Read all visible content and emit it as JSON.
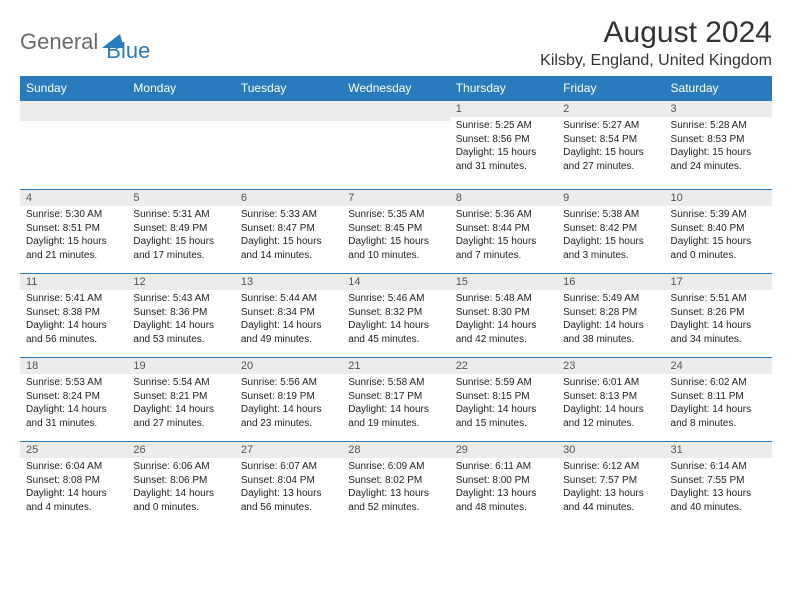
{
  "brand": {
    "word1": "General",
    "word2": "Blue",
    "logo_color": "#2a7bbd"
  },
  "title": "August 2024",
  "location": "Kilsby, England, United Kingdom",
  "colors": {
    "header_bg": "#2a7bbd",
    "header_text": "#ffffff",
    "num_row_bg": "#ececec",
    "rule": "#2a7bbd",
    "text": "#222222"
  },
  "day_headers": [
    "Sunday",
    "Monday",
    "Tuesday",
    "Wednesday",
    "Thursday",
    "Friday",
    "Saturday"
  ],
  "weeks": [
    [
      null,
      null,
      null,
      null,
      {
        "n": "1",
        "sr": "5:25 AM",
        "ss": "8:56 PM",
        "dl": "15 hours and 31 minutes."
      },
      {
        "n": "2",
        "sr": "5:27 AM",
        "ss": "8:54 PM",
        "dl": "15 hours and 27 minutes."
      },
      {
        "n": "3",
        "sr": "5:28 AM",
        "ss": "8:53 PM",
        "dl": "15 hours and 24 minutes."
      }
    ],
    [
      {
        "n": "4",
        "sr": "5:30 AM",
        "ss": "8:51 PM",
        "dl": "15 hours and 21 minutes."
      },
      {
        "n": "5",
        "sr": "5:31 AM",
        "ss": "8:49 PM",
        "dl": "15 hours and 17 minutes."
      },
      {
        "n": "6",
        "sr": "5:33 AM",
        "ss": "8:47 PM",
        "dl": "15 hours and 14 minutes."
      },
      {
        "n": "7",
        "sr": "5:35 AM",
        "ss": "8:45 PM",
        "dl": "15 hours and 10 minutes."
      },
      {
        "n": "8",
        "sr": "5:36 AM",
        "ss": "8:44 PM",
        "dl": "15 hours and 7 minutes."
      },
      {
        "n": "9",
        "sr": "5:38 AM",
        "ss": "8:42 PM",
        "dl": "15 hours and 3 minutes."
      },
      {
        "n": "10",
        "sr": "5:39 AM",
        "ss": "8:40 PM",
        "dl": "15 hours and 0 minutes."
      }
    ],
    [
      {
        "n": "11",
        "sr": "5:41 AM",
        "ss": "8:38 PM",
        "dl": "14 hours and 56 minutes."
      },
      {
        "n": "12",
        "sr": "5:43 AM",
        "ss": "8:36 PM",
        "dl": "14 hours and 53 minutes."
      },
      {
        "n": "13",
        "sr": "5:44 AM",
        "ss": "8:34 PM",
        "dl": "14 hours and 49 minutes."
      },
      {
        "n": "14",
        "sr": "5:46 AM",
        "ss": "8:32 PM",
        "dl": "14 hours and 45 minutes."
      },
      {
        "n": "15",
        "sr": "5:48 AM",
        "ss": "8:30 PM",
        "dl": "14 hours and 42 minutes."
      },
      {
        "n": "16",
        "sr": "5:49 AM",
        "ss": "8:28 PM",
        "dl": "14 hours and 38 minutes."
      },
      {
        "n": "17",
        "sr": "5:51 AM",
        "ss": "8:26 PM",
        "dl": "14 hours and 34 minutes."
      }
    ],
    [
      {
        "n": "18",
        "sr": "5:53 AM",
        "ss": "8:24 PM",
        "dl": "14 hours and 31 minutes."
      },
      {
        "n": "19",
        "sr": "5:54 AM",
        "ss": "8:21 PM",
        "dl": "14 hours and 27 minutes."
      },
      {
        "n": "20",
        "sr": "5:56 AM",
        "ss": "8:19 PM",
        "dl": "14 hours and 23 minutes."
      },
      {
        "n": "21",
        "sr": "5:58 AM",
        "ss": "8:17 PM",
        "dl": "14 hours and 19 minutes."
      },
      {
        "n": "22",
        "sr": "5:59 AM",
        "ss": "8:15 PM",
        "dl": "14 hours and 15 minutes."
      },
      {
        "n": "23",
        "sr": "6:01 AM",
        "ss": "8:13 PM",
        "dl": "14 hours and 12 minutes."
      },
      {
        "n": "24",
        "sr": "6:02 AM",
        "ss": "8:11 PM",
        "dl": "14 hours and 8 minutes."
      }
    ],
    [
      {
        "n": "25",
        "sr": "6:04 AM",
        "ss": "8:08 PM",
        "dl": "14 hours and 4 minutes."
      },
      {
        "n": "26",
        "sr": "6:06 AM",
        "ss": "8:06 PM",
        "dl": "14 hours and 0 minutes."
      },
      {
        "n": "27",
        "sr": "6:07 AM",
        "ss": "8:04 PM",
        "dl": "13 hours and 56 minutes."
      },
      {
        "n": "28",
        "sr": "6:09 AM",
        "ss": "8:02 PM",
        "dl": "13 hours and 52 minutes."
      },
      {
        "n": "29",
        "sr": "6:11 AM",
        "ss": "8:00 PM",
        "dl": "13 hours and 48 minutes."
      },
      {
        "n": "30",
        "sr": "6:12 AM",
        "ss": "7:57 PM",
        "dl": "13 hours and 44 minutes."
      },
      {
        "n": "31",
        "sr": "6:14 AM",
        "ss": "7:55 PM",
        "dl": "13 hours and 40 minutes."
      }
    ]
  ],
  "labels": {
    "sunrise": "Sunrise: ",
    "sunset": "Sunset: ",
    "daylight": "Daylight: "
  }
}
